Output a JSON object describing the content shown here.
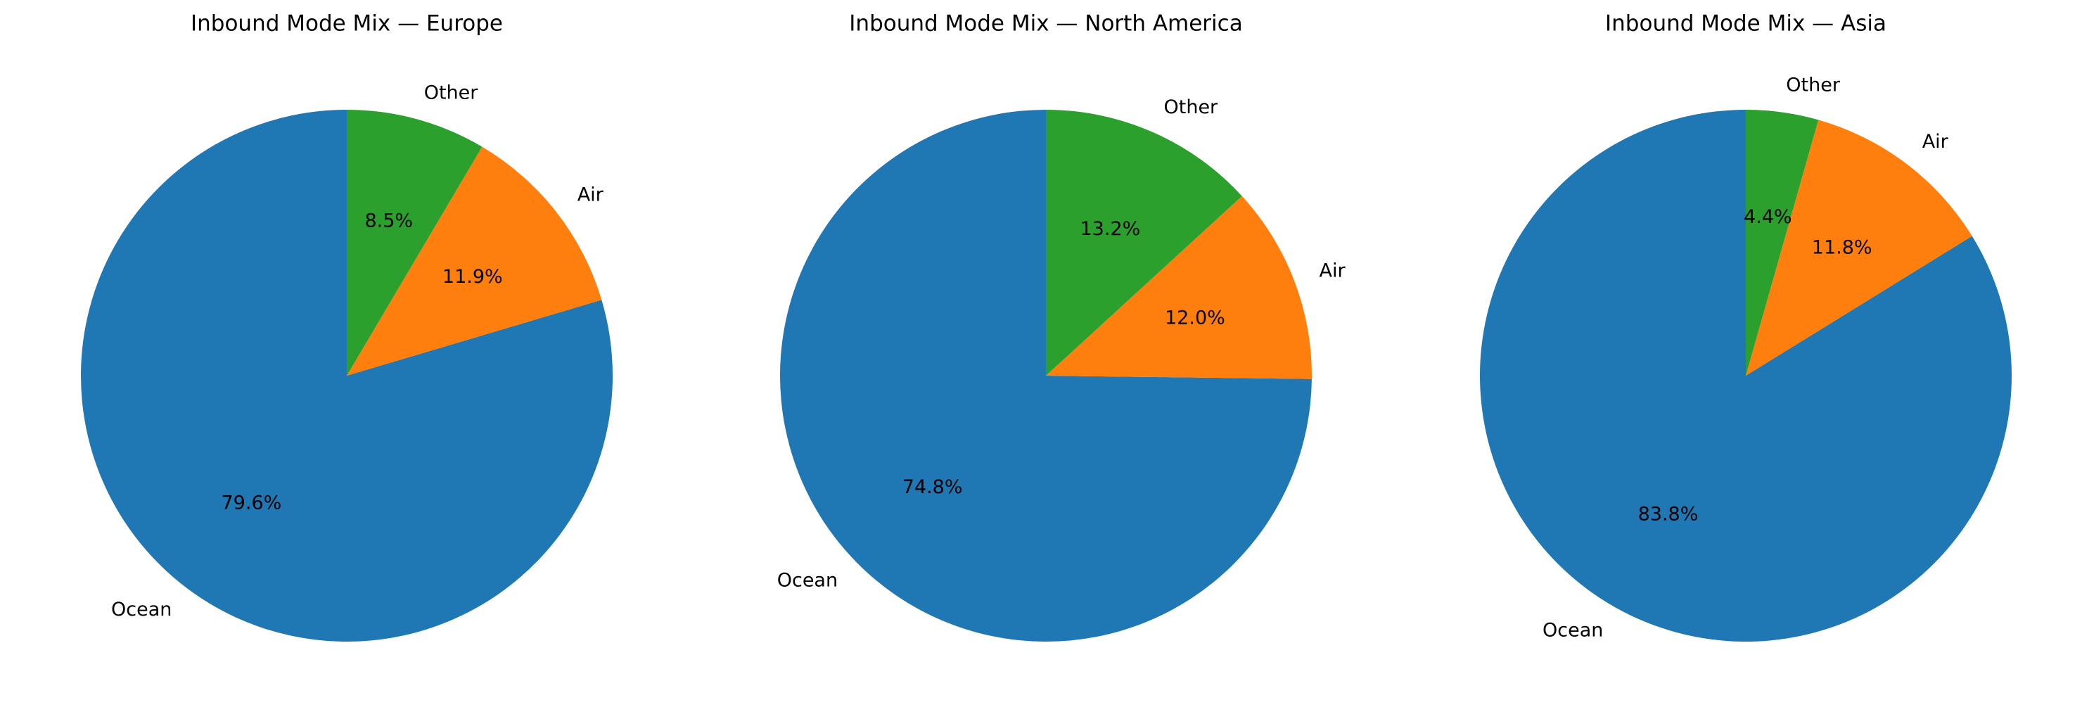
{
  "chart_data": [
    {
      "type": "pie",
      "title": "Inbound Mode Mix — Europe",
      "slices": [
        {
          "label": "Ocean",
          "value": 79.6,
          "pct_label": "79.6%",
          "color": "#1f77b4"
        },
        {
          "label": "Air",
          "value": 11.9,
          "pct_label": "11.9%",
          "color": "#ff7f0e"
        },
        {
          "label": "Other",
          "value": 8.5,
          "pct_label": "8.5%",
          "color": "#2ca02c"
        }
      ]
    },
    {
      "type": "pie",
      "title": "Inbound Mode Mix — North America",
      "slices": [
        {
          "label": "Ocean",
          "value": 74.8,
          "pct_label": "74.8%",
          "color": "#1f77b4"
        },
        {
          "label": "Air",
          "value": 12.0,
          "pct_label": "12.0%",
          "color": "#ff7f0e"
        },
        {
          "label": "Other",
          "value": 13.2,
          "pct_label": "13.2%",
          "color": "#2ca02c"
        }
      ]
    },
    {
      "type": "pie",
      "title": "Inbound Mode Mix — Asia",
      "slices": [
        {
          "label": "Ocean",
          "value": 83.8,
          "pct_label": "83.8%",
          "color": "#1f77b4"
        },
        {
          "label": "Air",
          "value": 11.8,
          "pct_label": "11.8%",
          "color": "#ff7f0e"
        },
        {
          "label": "Other",
          "value": 4.4,
          "pct_label": "4.4%",
          "color": "#2ca02c"
        }
      ]
    }
  ]
}
